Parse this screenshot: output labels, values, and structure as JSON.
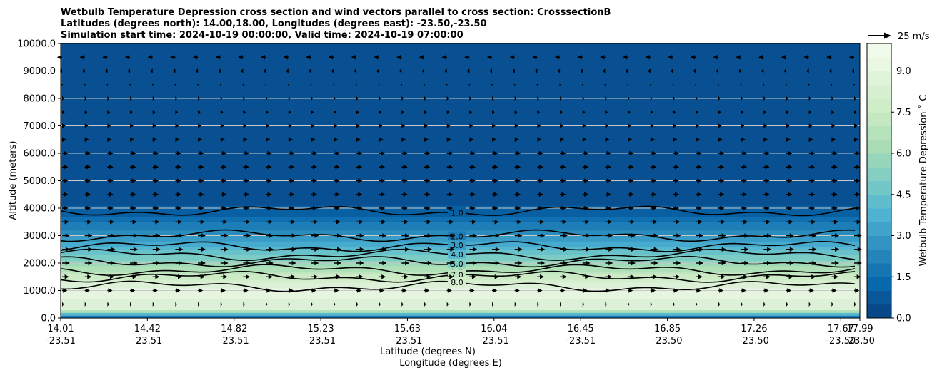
{
  "chart_data": {
    "type": "heatmap",
    "title_lines": [
      "Wetbulb Temperature Depression cross section and wind vectors parallel to cross section: CrosssectionB",
      "Latitudes (degrees north): 14.00,18.00, Longitudes (degrees east): -23.50,-23.50",
      "Simulation start time: 2024-10-19 00:00:00, Valid time: 2024-10-19 07:00:00"
    ],
    "ylabel": "Altitude (meters)",
    "xlabel_lat": "Latitude (degrees N)",
    "xlabel_lon": "Longitude (degrees E)",
    "colorbar_label": "Wetbulb Temperature Depression ˚ C",
    "ylim": [
      0,
      10000
    ],
    "y_ticks": [
      "0.0",
      "1000.0",
      "2000.0",
      "3000.0",
      "4000.0",
      "5000.0",
      "6000.0",
      "7000.0",
      "8000.0",
      "9000.0",
      "10000.0"
    ],
    "x_ticks": [
      {
        "lat": "14.01",
        "lon": "-23.51"
      },
      {
        "lat": "14.42",
        "lon": "-23.51"
      },
      {
        "lat": "14.82",
        "lon": "-23.51"
      },
      {
        "lat": "15.23",
        "lon": "-23.51"
      },
      {
        "lat": "15.63",
        "lon": "-23.51"
      },
      {
        "lat": "16.04",
        "lon": "-23.51"
      },
      {
        "lat": "16.45",
        "lon": "-23.51"
      },
      {
        "lat": "16.85",
        "lon": "-23.50"
      },
      {
        "lat": "17.26",
        "lon": "-23.50"
      },
      {
        "lat": "17.67",
        "lon": "-23.50"
      },
      {
        "lat": "17.99",
        "lon": "-23.50"
      }
    ],
    "colorbar_range": [
      0,
      10
    ],
    "colorbar_ticks": [
      "0.0",
      "1.5",
      "3.0",
      "4.5",
      "6.0",
      "7.5",
      "9.0"
    ],
    "colormap": [
      "#084081",
      "#0868ac",
      "#2b8cbe",
      "#4eb3d3",
      "#7bccc4",
      "#a8ddb5",
      "#ccebc5",
      "#e0f3db",
      "#f7fcf0"
    ],
    "quiver_key_label": "25 m/s",
    "grid": "horizontal",
    "depression_profile": [
      {
        "alt": 0,
        "value": 1.0
      },
      {
        "alt": 150,
        "value": 4.0
      },
      {
        "alt": 350,
        "value": 8.5
      },
      {
        "alt": 1000,
        "value": 9.0
      },
      {
        "alt": 1400,
        "value": 7.8
      },
      {
        "alt": 1800,
        "value": 6.5
      },
      {
        "alt": 2200,
        "value": 5.0
      },
      {
        "alt": 2700,
        "value": 3.6
      },
      {
        "alt": 3200,
        "value": 2.3
      },
      {
        "alt": 3700,
        "value": 1.3
      },
      {
        "alt": 4200,
        "value": 0.6
      },
      {
        "alt": 6000,
        "value": 0.3
      },
      {
        "alt": 10000,
        "value": 0.5
      }
    ],
    "contours": [
      {
        "label": "1.0",
        "alt": 3900
      },
      {
        "label": "2.0",
        "alt": 3000
      },
      {
        "label": "3.0",
        "alt": 2600
      },
      {
        "label": "4.0",
        "alt": 2300
      },
      {
        "label": "5.0",
        "alt": 2050
      },
      {
        "label": "6.0",
        "alt": 1750
      },
      {
        "label": "7.0",
        "alt": 1500
      },
      {
        "label": "8.0",
        "alt": 1150
      }
    ],
    "wind_rows": [
      {
        "alt": 9500,
        "u": -6
      },
      {
        "alt": 9000,
        "u": -3
      },
      {
        "alt": 8500,
        "u": 1
      },
      {
        "alt": 8000,
        "u": 2
      },
      {
        "alt": 7500,
        "u": 3
      },
      {
        "alt": 7000,
        "u": 4
      },
      {
        "alt": 6500,
        "u": 5
      },
      {
        "alt": 6000,
        "u": 7
      },
      {
        "alt": 5500,
        "u": 7
      },
      {
        "alt": 5000,
        "u": 7
      },
      {
        "alt": 4500,
        "u": 7
      },
      {
        "alt": 4000,
        "u": 7
      },
      {
        "alt": 3500,
        "u": 8
      },
      {
        "alt": 3000,
        "u": 9
      },
      {
        "alt": 2500,
        "u": 9
      },
      {
        "alt": 2000,
        "u": 9
      },
      {
        "alt": 1500,
        "u": 8
      },
      {
        "alt": 1000,
        "u": 6
      },
      {
        "alt": 500,
        "u": 2
      }
    ]
  }
}
